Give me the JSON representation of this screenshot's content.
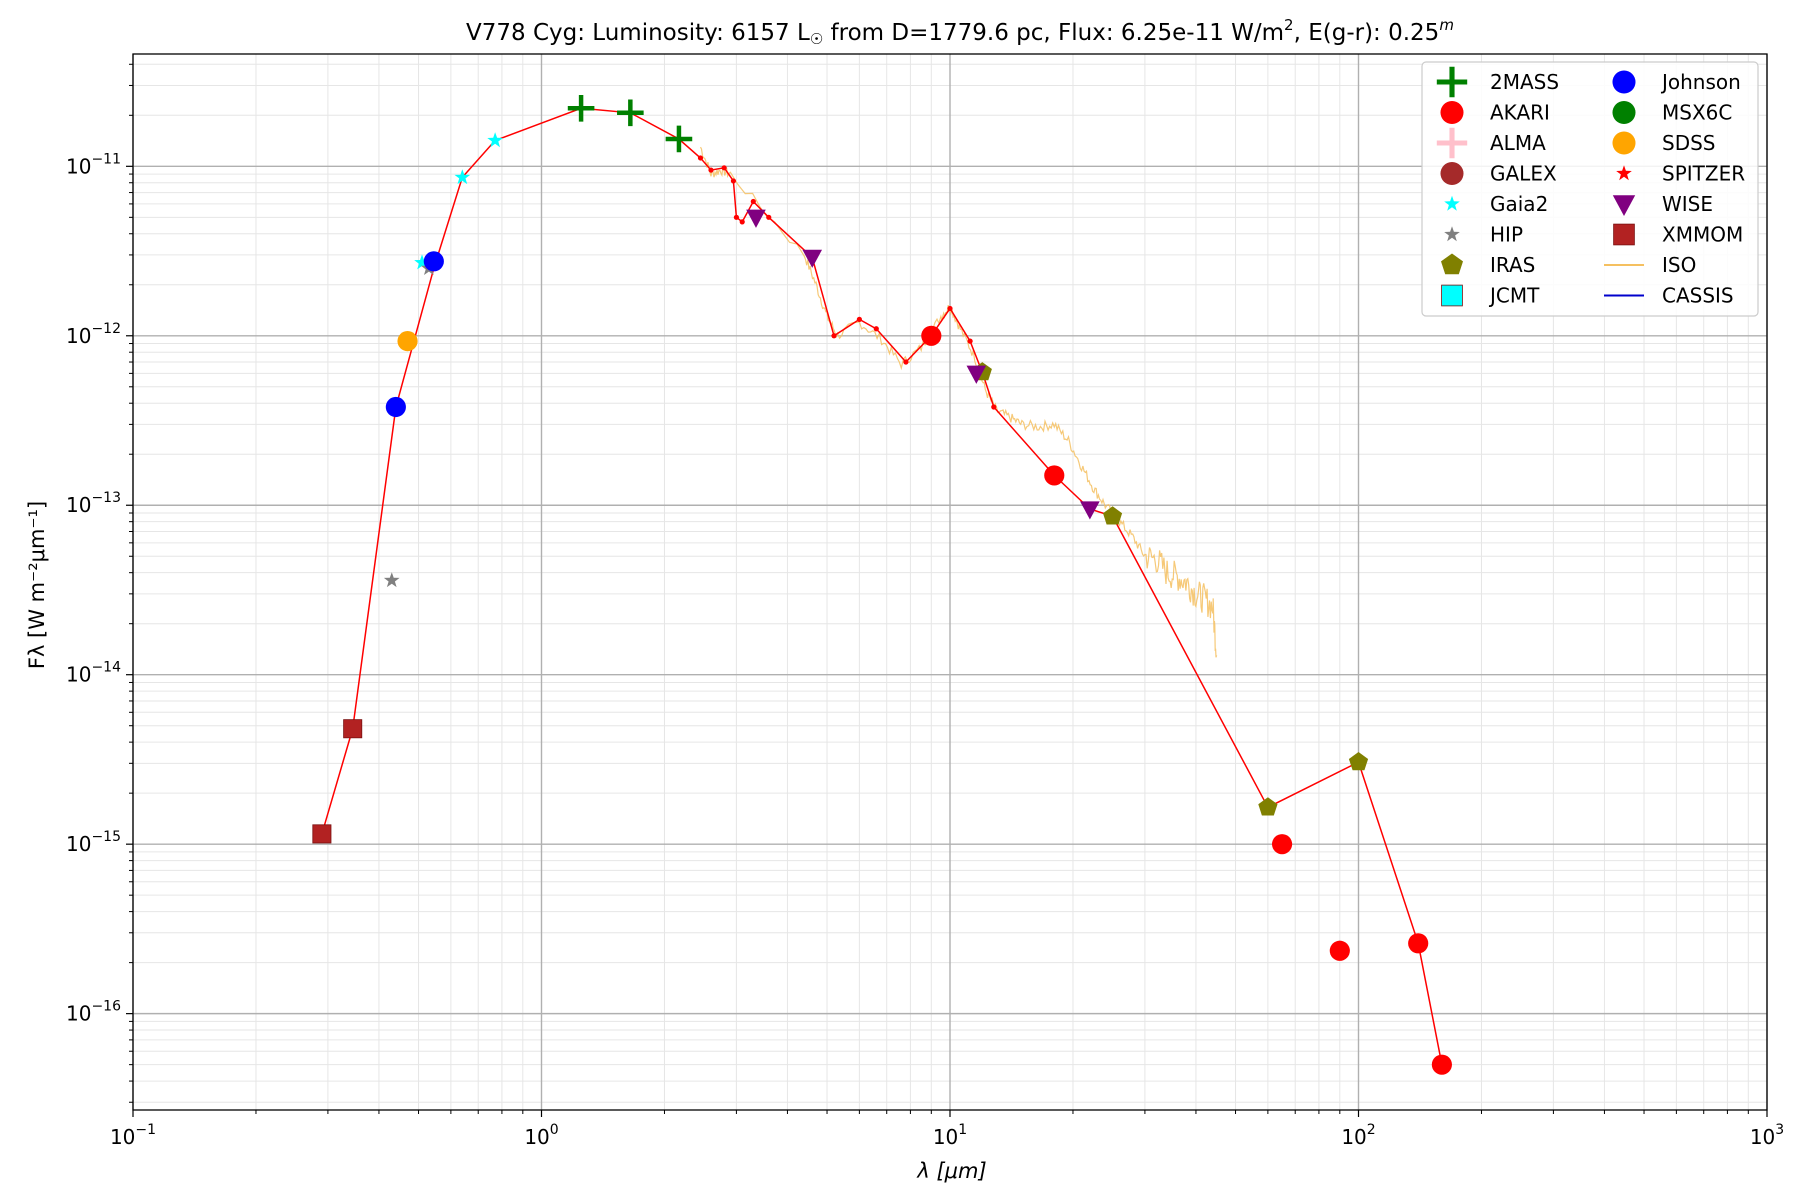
{
  "chart_data": {
    "type": "scatter",
    "title_parts": {
      "prefix": "V778 Cyg:  Luminosity: 6157 L",
      "sun_symbol": "☉",
      "middle": " from D=1779.6 pc, Flux: 6.25e-11 W/m",
      "sq": "2",
      "suffix": ", E(g-r): 0.25",
      "mag": "m"
    },
    "xlabel": "λ [μm]",
    "ylabel": "Fλ [W m⁻²μm⁻¹]",
    "xscale": "log",
    "yscale": "log",
    "xlim": [
      0.1,
      1000
    ],
    "ylim": [
      2.7e-17,
      4.6e-11
    ],
    "x_ticks": [
      {
        "value": 0.1,
        "mant": "10",
        "exp": "−1"
      },
      {
        "value": 1,
        "mant": "10",
        "exp": "0"
      },
      {
        "value": 10,
        "mant": "10",
        "exp": "1"
      },
      {
        "value": 100,
        "mant": "10",
        "exp": "2"
      },
      {
        "value": 1000,
        "mant": "10",
        "exp": "3"
      }
    ],
    "y_ticks": [
      {
        "value": 1e-16,
        "mant": "10",
        "exp": "−16"
      },
      {
        "value": 1e-15,
        "mant": "10",
        "exp": "−15"
      },
      {
        "value": 1e-14,
        "mant": "10",
        "exp": "−14"
      },
      {
        "value": 1e-13,
        "mant": "10",
        "exp": "−13"
      },
      {
        "value": 1e-12,
        "mant": "10",
        "exp": "−12"
      },
      {
        "value": 1e-11,
        "mant": "10",
        "exp": "−11"
      }
    ],
    "grid": true,
    "legend_position": "top-right",
    "sed_line": {
      "color": "#ff0000",
      "points": [
        [
          0.29,
          1.15e-15
        ],
        [
          0.345,
          4.8e-15
        ],
        [
          0.44,
          3.8e-13
        ],
        [
          0.545,
          2.5e-12
        ],
        [
          0.64,
          8.6e-12
        ],
        [
          0.77,
          1.42e-11
        ],
        [
          1.25,
          2.2e-11
        ],
        [
          1.65,
          2.07e-11
        ],
        [
          2.17,
          1.45e-11
        ],
        [
          2.45,
          1.12e-11
        ],
        [
          2.6,
          9.5e-12
        ],
        [
          2.8,
          9.8e-12
        ],
        [
          2.95,
          8.2e-12
        ],
        [
          3.0,
          5e-12
        ],
        [
          3.1,
          4.7e-12
        ],
        [
          3.3,
          6.2e-12
        ],
        [
          3.6,
          5e-12
        ],
        [
          4.6,
          2.9e-12
        ],
        [
          5.2,
          1e-12
        ],
        [
          6.0,
          1.25e-12
        ],
        [
          6.6,
          1.1e-12
        ],
        [
          7.8,
          7e-13
        ],
        [
          9.0,
          1e-12
        ],
        [
          10.0,
          1.45e-12
        ],
        [
          11.2,
          9.3e-13
        ],
        [
          12.0,
          6.1e-13
        ],
        [
          12.8,
          3.8e-13
        ],
        [
          18.0,
          1.5e-13
        ],
        [
          22.0,
          9.5e-14
        ],
        [
          25.0,
          8.6e-14
        ],
        [
          60.0,
          1.65e-15
        ],
        [
          100.0,
          3.05e-15
        ],
        [
          140.0,
          2.6e-16
        ],
        [
          160.0,
          5e-17
        ]
      ]
    },
    "iso_spectrum": {
      "color": "#f5c060",
      "points": [
        [
          2.45,
          1.3e-11
        ],
        [
          2.6,
          9e-12
        ],
        [
          2.75,
          9.5e-12
        ],
        [
          2.9,
          9e-12
        ],
        [
          4.4,
          3e-12
        ],
        [
          4.7,
          2e-12
        ],
        [
          5.0,
          1.3e-12
        ],
        [
          5.3,
          1e-12
        ],
        [
          6.0,
          1.2e-12
        ],
        [
          6.8,
          9.5e-13
        ],
        [
          7.6,
          6.8e-13
        ],
        [
          8.5,
          8.5e-13
        ],
        [
          9.5,
          1.3e-12
        ],
        [
          10.0,
          1.5e-12
        ],
        [
          10.6,
          1.1e-12
        ],
        [
          11.5,
          7.5e-13
        ],
        [
          12.2,
          4.8e-13
        ],
        [
          13.0,
          3.6e-13
        ],
        [
          14.0,
          3.3e-13
        ],
        [
          15.0,
          3e-13
        ],
        [
          16.5,
          2.9e-13
        ],
        [
          18.0,
          3e-13
        ],
        [
          19.5,
          2.4e-13
        ],
        [
          21.0,
          1.7e-13
        ],
        [
          22.5,
          1.25e-13
        ],
        [
          24.0,
          1e-13
        ],
        [
          26.0,
          8e-14
        ],
        [
          28.0,
          6.5e-14
        ],
        [
          30.0,
          5e-14
        ],
        [
          32.0,
          4.8e-14
        ],
        [
          34.0,
          4e-14
        ],
        [
          36.0,
          3.8e-14
        ],
        [
          38.0,
          3.5e-14
        ],
        [
          40.0,
          3e-14
        ],
        [
          42.0,
          2.8e-14
        ],
        [
          44.0,
          2.5e-14
        ],
        [
          45.0,
          1.3e-14
        ]
      ]
    },
    "series": [
      {
        "name": "2MASS",
        "marker": "plus",
        "color": "#008000",
        "points": [
          [
            1.25,
            2.2e-11
          ],
          [
            1.65,
            2.07e-11
          ],
          [
            2.17,
            1.45e-11
          ]
        ]
      },
      {
        "name": "AKARI",
        "marker": "circle",
        "color": "#ff0000",
        "points": [
          [
            9.0,
            1e-12
          ],
          [
            18.0,
            1.5e-13
          ],
          [
            65.0,
            1e-15
          ],
          [
            90.0,
            2.35e-16
          ],
          [
            140.0,
            2.6e-16
          ],
          [
            160.0,
            5e-17
          ]
        ]
      },
      {
        "name": "ALMA",
        "marker": "plus",
        "color": "#ffc0cb",
        "points": []
      },
      {
        "name": "GALEX",
        "marker": "circle",
        "color": "#a52a2a",
        "points": []
      },
      {
        "name": "Gaia2",
        "marker": "star",
        "color": "#00ffff",
        "points": [
          [
            0.51,
            2.7e-12
          ],
          [
            0.64,
            8.6e-12
          ],
          [
            0.77,
            1.42e-11
          ]
        ]
      },
      {
        "name": "HIP",
        "marker": "star",
        "color": "#808080",
        "points": [
          [
            0.43,
            3.6e-14
          ],
          [
            0.53,
            2.5e-12
          ]
        ]
      },
      {
        "name": "IRAS",
        "marker": "pentagon",
        "color": "#808000",
        "points": [
          [
            12.0,
            6.1e-13
          ],
          [
            25.0,
            8.6e-14
          ],
          [
            60.0,
            1.65e-15
          ],
          [
            100.0,
            3.05e-15
          ]
        ]
      },
      {
        "name": "JCMT",
        "marker": "square",
        "color": "#00ffff",
        "points": []
      },
      {
        "name": "Johnson",
        "marker": "circle",
        "color": "#0000ff",
        "points": [
          [
            0.44,
            3.8e-13
          ],
          [
            0.545,
            2.75e-12
          ]
        ]
      },
      {
        "name": "MSX6C",
        "marker": "circle",
        "color": "#008000",
        "points": []
      },
      {
        "name": "SDSS",
        "marker": "circle",
        "color": "#ffa500",
        "points": [
          [
            0.47,
            9.3e-13
          ]
        ]
      },
      {
        "name": "SPITZER",
        "marker": "star",
        "color": "#ff0000",
        "points": []
      },
      {
        "name": "WISE",
        "marker": "triangle-down",
        "color": "#800080",
        "points": [
          [
            3.35,
            5e-12
          ],
          [
            4.6,
            2.9e-12
          ],
          [
            11.6,
            6e-13
          ],
          [
            22.0,
            9.5e-14
          ]
        ]
      },
      {
        "name": "XMMOM",
        "marker": "square",
        "color": "#b22222",
        "points": [
          [
            0.29,
            1.15e-15
          ],
          [
            0.345,
            4.8e-15
          ]
        ]
      }
    ],
    "legend_lines": [
      {
        "name": "ISO",
        "color": "#f5c060"
      },
      {
        "name": "CASSIS",
        "color": "#0000cc"
      }
    ]
  }
}
